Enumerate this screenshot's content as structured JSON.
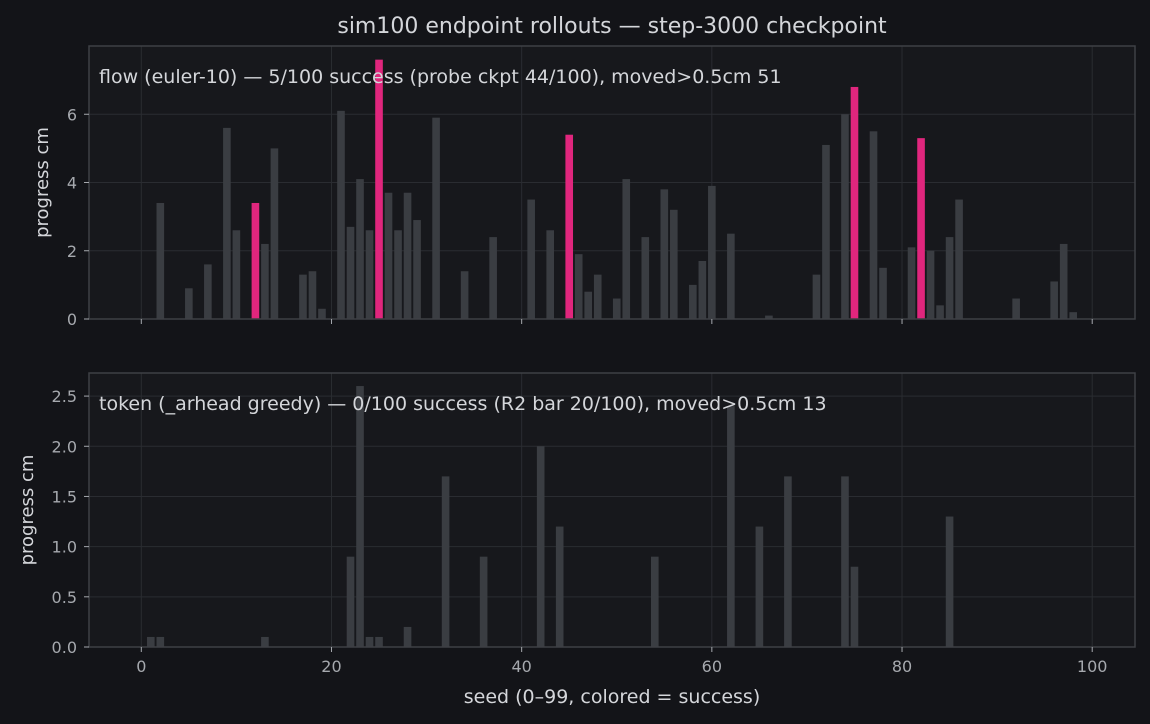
{
  "figure": {
    "title": "sim100 endpoint rollouts — step-3000 checkpoint",
    "xlabel": "seed (0–99, colored = success)"
  },
  "colors": {
    "background": "#131418",
    "panel": "#17181c",
    "frame": "#3e4045",
    "grid": "#2a2c31",
    "bar": "#3a3d42",
    "success": "#e0267d",
    "text": "#d4d6da",
    "tick_text": "#a6a9ae"
  },
  "chart_data": [
    {
      "type": "bar",
      "panel": "top",
      "annotation": "flow (euler-10) — 5/100 success (probe ckpt 44/100), moved>0.5cm 51",
      "ylabel": "progress cm",
      "xlim": [
        -5.5,
        104.5
      ],
      "ylim": [
        0,
        8
      ],
      "xticks": [
        0,
        20,
        40,
        60,
        80,
        100
      ],
      "yticks": [
        0,
        2,
        4,
        6
      ],
      "grid": true,
      "x": [
        0,
        1,
        2,
        3,
        4,
        5,
        6,
        7,
        8,
        9,
        10,
        11,
        12,
        13,
        14,
        15,
        16,
        17,
        18,
        19,
        20,
        21,
        22,
        23,
        24,
        25,
        26,
        27,
        28,
        29,
        30,
        31,
        32,
        33,
        34,
        35,
        36,
        37,
        38,
        39,
        40,
        41,
        42,
        43,
        44,
        45,
        46,
        47,
        48,
        49,
        50,
        51,
        52,
        53,
        54,
        55,
        56,
        57,
        58,
        59,
        60,
        61,
        62,
        63,
        64,
        65,
        66,
        67,
        68,
        69,
        70,
        71,
        72,
        73,
        74,
        75,
        76,
        77,
        78,
        79,
        80,
        81,
        82,
        83,
        84,
        85,
        86,
        87,
        88,
        89,
        90,
        91,
        92,
        93,
        94,
        95,
        96,
        97,
        98,
        99
      ],
      "values": [
        0,
        0,
        3.4,
        0,
        0,
        0.9,
        0,
        1.6,
        0,
        5.6,
        2.6,
        0,
        3.4,
        2.2,
        5.0,
        0,
        0,
        1.3,
        1.4,
        0.3,
        0,
        6.1,
        2.7,
        4.1,
        2.6,
        7.6,
        3.7,
        2.6,
        3.7,
        2.9,
        0,
        5.9,
        0,
        0,
        1.4,
        0,
        0,
        2.4,
        0,
        0,
        0,
        3.5,
        0,
        2.6,
        0,
        5.4,
        1.9,
        0.8,
        1.3,
        0,
        0.6,
        4.1,
        0,
        2.4,
        0,
        3.8,
        3.2,
        0,
        1.0,
        1.7,
        3.9,
        0,
        2.5,
        0,
        0,
        0,
        0.1,
        0,
        0,
        0,
        0,
        1.3,
        5.1,
        0,
        6.0,
        6.8,
        0,
        5.5,
        1.5,
        0,
        0,
        2.1,
        5.3,
        2.0,
        0.4,
        2.4,
        3.5,
        0,
        0,
        0,
        0,
        0,
        0.6,
        0,
        0,
        0,
        1.1,
        2.2,
        0.2,
        0
      ],
      "success_seeds": [
        12,
        25,
        45,
        75,
        82
      ]
    },
    {
      "type": "bar",
      "panel": "bottom",
      "annotation": "token (_arhead greedy) — 0/100 success (R2 bar 20/100), moved>0.5cm 13",
      "ylabel": "progress cm",
      "xlabel": "seed (0–99, colored = success)",
      "xlim": [
        -5.5,
        104.5
      ],
      "ylim": [
        0,
        2.73
      ],
      "xticks": [
        0,
        20,
        40,
        60,
        80,
        100
      ],
      "yticks": [
        0.0,
        0.5,
        1.0,
        1.5,
        2.0,
        2.5
      ],
      "ytick_labels": [
        "0.0",
        "0.5",
        "1.0",
        "1.5",
        "2.0",
        "2.5"
      ],
      "grid": true,
      "x": [
        0,
        1,
        2,
        3,
        4,
        5,
        6,
        7,
        8,
        9,
        10,
        11,
        12,
        13,
        14,
        15,
        16,
        17,
        18,
        19,
        20,
        21,
        22,
        23,
        24,
        25,
        26,
        27,
        28,
        29,
        30,
        31,
        32,
        33,
        34,
        35,
        36,
        37,
        38,
        39,
        40,
        41,
        42,
        43,
        44,
        45,
        46,
        47,
        48,
        49,
        50,
        51,
        52,
        53,
        54,
        55,
        56,
        57,
        58,
        59,
        60,
        61,
        62,
        63,
        64,
        65,
        66,
        67,
        68,
        69,
        70,
        71,
        72,
        73,
        74,
        75,
        76,
        77,
        78,
        79,
        80,
        81,
        82,
        83,
        84,
        85,
        86,
        87,
        88,
        89,
        90,
        91,
        92,
        93,
        94,
        95,
        96,
        97,
        98,
        99
      ],
      "values": [
        0,
        0.1,
        0.1,
        0,
        0,
        0,
        0,
        0,
        0,
        0,
        0,
        0,
        0,
        0.1,
        0,
        0,
        0,
        0,
        0,
        0,
        0,
        0,
        0.9,
        2.6,
        0.1,
        0.1,
        0,
        0,
        0.2,
        0,
        0,
        0,
        1.7,
        0,
        0,
        0,
        0.9,
        0,
        0,
        0,
        0,
        0,
        2.0,
        0,
        1.2,
        0,
        0,
        0,
        0,
        0,
        0,
        0,
        0,
        0,
        0.9,
        0,
        0,
        0,
        0,
        0,
        0,
        0,
        2.4,
        0,
        0,
        1.2,
        0,
        0,
        1.7,
        0,
        0,
        0,
        0,
        0,
        1.7,
        0.8,
        0,
        0,
        0,
        0,
        0,
        0,
        0,
        0,
        0,
        1.3,
        0,
        0,
        0,
        0,
        0,
        0,
        0,
        0,
        0,
        0,
        0,
        0,
        0,
        0
      ],
      "success_seeds": []
    }
  ]
}
